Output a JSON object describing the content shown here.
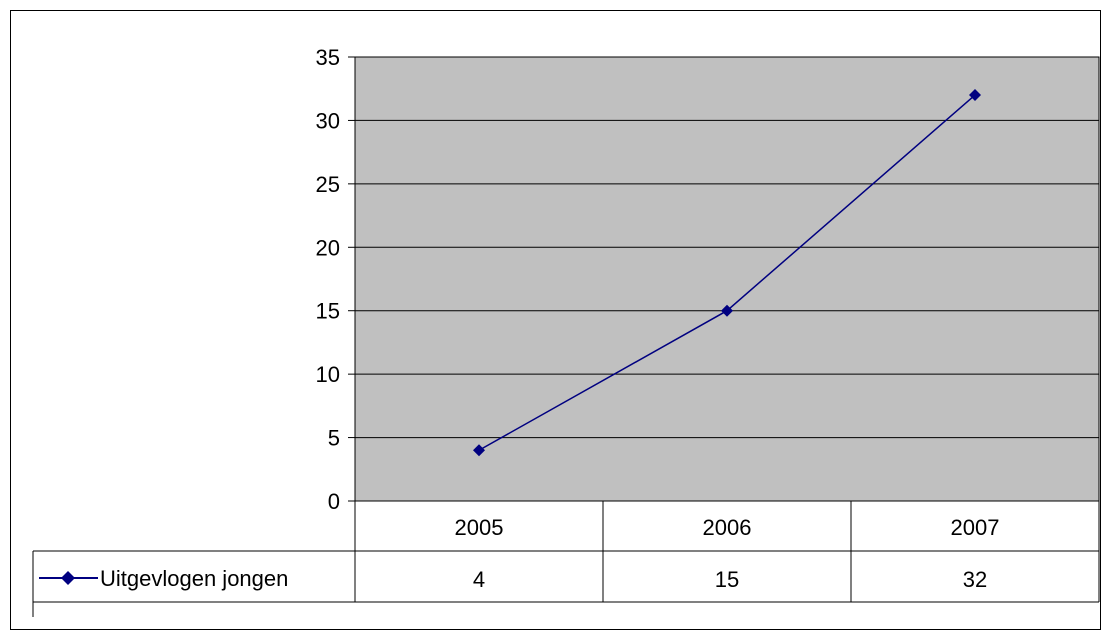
{
  "chart_data": {
    "type": "line",
    "categories": [
      "2005",
      "2006",
      "2007"
    ],
    "series": [
      {
        "name": "Uitgevlogen jongen",
        "values": [
          4,
          15,
          32
        ],
        "color": "#000080"
      }
    ],
    "ylim": [
      0,
      35
    ],
    "yticks": [
      0,
      5,
      10,
      15,
      20,
      25,
      30,
      35
    ],
    "grid": true,
    "plot_background": "#C0C0C0",
    "legend": "data-table"
  }
}
